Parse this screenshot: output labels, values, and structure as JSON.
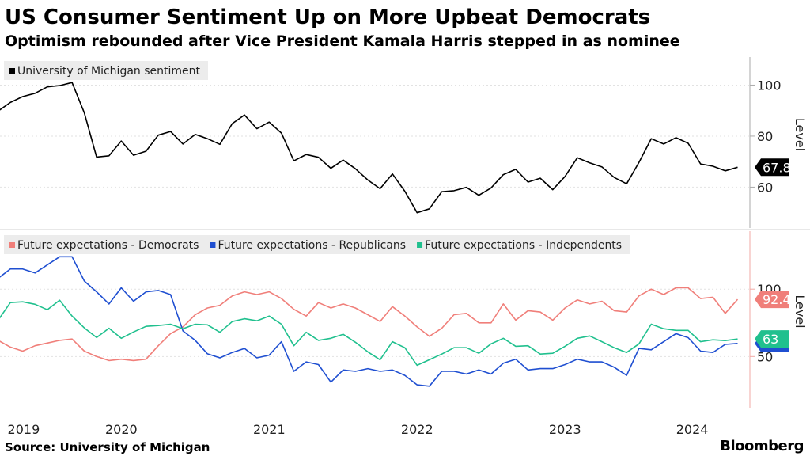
{
  "chart_data": [
    {
      "type": "line",
      "title": "US Consumer Sentiment Up on More Upbeat Democrats",
      "subtitle": "Optimism rebounded after Vice President Kamala Harris stepped in as nominee",
      "ylabel": "Level",
      "x": [
        2019.667,
        2019.75,
        2019.833,
        2019.917,
        2020,
        2020.083,
        2020.167,
        2020.25,
        2020.333,
        2020.417,
        2020.5,
        2020.583,
        2020.667,
        2020.75,
        2020.833,
        2020.917,
        2021,
        2021.083,
        2021.167,
        2021.25,
        2021.333,
        2021.417,
        2021.5,
        2021.583,
        2021.667,
        2021.75,
        2021.833,
        2021.917,
        2022,
        2022.083,
        2022.167,
        2022.25,
        2022.333,
        2022.417,
        2022.5,
        2022.583,
        2022.667,
        2022.75,
        2022.833,
        2022.917,
        2023,
        2023.083,
        2023.167,
        2023.25,
        2023.333,
        2023.417,
        2023.5,
        2023.583,
        2023.667,
        2023.75,
        2023.833,
        2023.917,
        2024,
        2024.083,
        2024.167,
        2024.25,
        2024.333,
        2024.417,
        2024.5,
        2024.583,
        2024.667
      ],
      "series": [
        {
          "name": "University of Michigan sentiment",
          "color": "#000000",
          "values": [
            89.8,
            93.2,
            95.5,
            96.8,
            99.3,
            99.8,
            101.0,
            89.1,
            71.8,
            72.3,
            78.1,
            72.5,
            74.1,
            80.4,
            81.8,
            76.9,
            80.7,
            79.0,
            76.8,
            84.9,
            88.3,
            82.9,
            85.5,
            81.2,
            70.3,
            72.8,
            71.7,
            67.4,
            70.6,
            67.2,
            62.8,
            59.4,
            65.2,
            58.4,
            50.0,
            51.5,
            58.2,
            58.6,
            59.9,
            56.8,
            59.7,
            64.9,
            67.0,
            62.0,
            63.5,
            59.0,
            64.2,
            71.5,
            69.5,
            67.9,
            63.8,
            61.3,
            69.7,
            79.0,
            76.9,
            79.4,
            77.2,
            69.1,
            68.2,
            66.4,
            67.8
          ]
        }
      ],
      "xlim": [
        2019.68,
        2024.75
      ],
      "ylim": [
        44,
        111
      ],
      "yticks": [
        60,
        80,
        100
      ],
      "grid": true
    },
    {
      "type": "line",
      "ylabel": "Level",
      "x": [
        2019.667,
        2019.75,
        2019.833,
        2019.917,
        2020,
        2020.083,
        2020.167,
        2020.25,
        2020.333,
        2020.417,
        2020.5,
        2020.583,
        2020.667,
        2020.75,
        2020.833,
        2020.917,
        2021,
        2021.083,
        2021.167,
        2021.25,
        2021.333,
        2021.417,
        2021.5,
        2021.583,
        2021.667,
        2021.75,
        2021.833,
        2021.917,
        2022,
        2022.083,
        2022.167,
        2022.25,
        2022.333,
        2022.417,
        2022.5,
        2022.583,
        2022.667,
        2022.75,
        2022.833,
        2022.917,
        2023,
        2023.083,
        2023.167,
        2023.25,
        2023.333,
        2023.417,
        2023.5,
        2023.583,
        2023.667,
        2023.75,
        2023.833,
        2023.917,
        2024,
        2024.083,
        2024.167,
        2024.25,
        2024.333,
        2024.417,
        2024.5,
        2024.583,
        2024.667
      ],
      "series": [
        {
          "name": "Future expectations - Democrats",
          "color": "#f07f7a",
          "values": [
            62,
            57,
            54,
            58,
            60,
            62,
            63,
            54,
            50,
            47,
            48,
            47,
            48,
            58,
            67,
            72,
            81,
            86,
            88,
            95,
            98,
            96,
            98,
            93,
            85,
            80,
            90,
            86,
            89,
            86,
            81,
            76,
            87,
            80,
            72,
            65,
            71,
            81,
            82,
            75,
            75,
            89,
            77,
            84,
            83,
            77,
            86,
            92,
            89,
            91,
            84,
            83,
            95,
            100,
            96,
            101,
            101,
            93,
            94,
            82,
            92.4
          ]
        },
        {
          "name": "Future expectations - Republicans",
          "color": "#1f4fd1",
          "values": [
            108,
            115,
            115,
            112,
            118,
            124,
            124,
            106,
            98,
            89,
            101,
            91,
            98,
            99,
            96,
            69,
            62,
            52,
            49,
            53,
            56,
            49,
            51,
            61,
            39,
            46,
            44,
            31,
            40,
            39,
            41,
            39,
            40,
            36,
            29,
            28,
            39,
            39,
            37,
            40,
            37,
            45,
            48,
            40,
            41,
            41,
            44,
            48,
            46,
            46,
            42,
            36,
            56,
            55,
            61,
            67,
            64,
            54,
            53,
            59,
            59.7
          ]
        },
        {
          "name": "Future expectations - Independents",
          "color": "#20c08e",
          "values": [
            77,
            90,
            90.6,
            88.8,
            84.7,
            91.8,
            80,
            71.2,
            64.1,
            71,
            63.5,
            68.2,
            72.4,
            73,
            74,
            70.6,
            74,
            73.5,
            68,
            75.9,
            78,
            76.5,
            80,
            74,
            58,
            68,
            62,
            63.5,
            66.5,
            60.6,
            53.5,
            47.6,
            61,
            56.5,
            43.5,
            47.6,
            51.8,
            56.5,
            56.5,
            52.4,
            59.4,
            63.5,
            57.6,
            58,
            51.8,
            52.4,
            57.6,
            63.5,
            65.3,
            61,
            56.5,
            53,
            59.4,
            74,
            70.6,
            69.4,
            69.4,
            61,
            62.4,
            61.8,
            63
          ]
        }
      ],
      "xlim": [
        2019.68,
        2024.75
      ],
      "ylim": [
        12,
        143
      ],
      "yticks": [
        50,
        100
      ],
      "xticks": [
        {
          "value": 2019.84,
          "label": "2019"
        },
        {
          "value": 2020.5,
          "label": "2020"
        },
        {
          "value": 2021.5,
          "label": "2021"
        },
        {
          "value": 2022.5,
          "label": "2022"
        },
        {
          "value": 2023.5,
          "label": "2023"
        },
        {
          "value": 2024.36,
          "label": "2024"
        }
      ],
      "grid": true
    }
  ],
  "footer": {
    "source": "Source: University of Michigan",
    "logo": "Bloomberg"
  }
}
